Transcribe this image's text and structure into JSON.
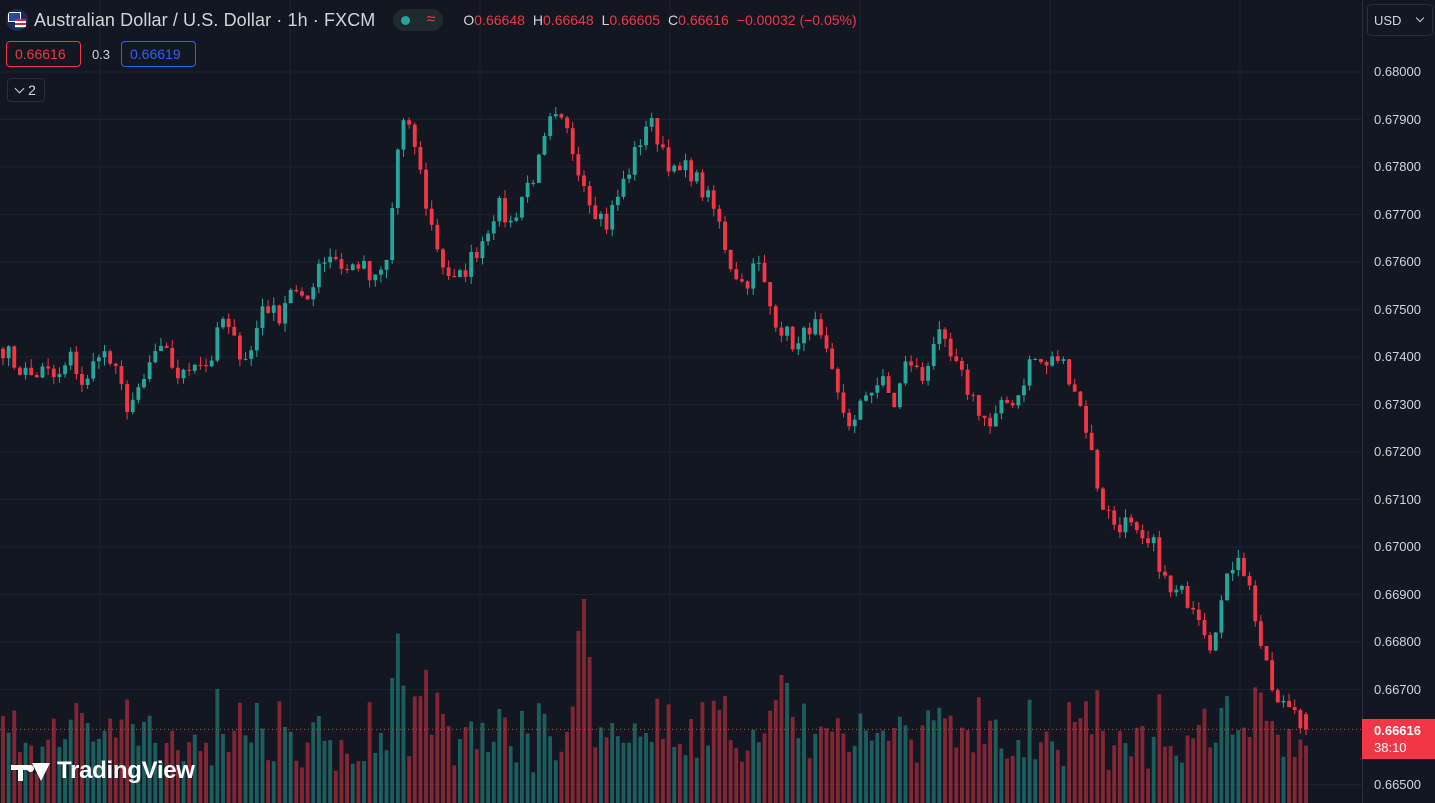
{
  "header": {
    "symbol_title": "Australian Dollar / U.S. Dollar · 1h · FXCM",
    "ohlc": {
      "open_label": "O",
      "open": "0.66648",
      "high_label": "H",
      "high": "0.66648",
      "low_label": "L",
      "low": "0.66605",
      "close_label": "C",
      "close": "0.66616",
      "change": "−0.00032 (−0.05%)"
    },
    "market_status_icon": "market-open-dot-icon",
    "wave_icon": "≈"
  },
  "quote": {
    "sell": "0.66616",
    "spread": "0.3",
    "buy": "0.66619"
  },
  "indicators_toggle": {
    "count": "2"
  },
  "currency": "USD",
  "last_price": {
    "price": "0.66616",
    "countdown": "38:10"
  },
  "watermark": "TradingView",
  "colors": {
    "background": "#131722",
    "up": "#26a69a",
    "down": "#f23645",
    "buy": "#2962ff",
    "grid": "#1e222d"
  },
  "chart_data": {
    "type": "candlestick",
    "timeframe": "1h",
    "y_axis": {
      "range": [
        0.6647,
        0.6802
      ],
      "ticks": [
        "0.68000",
        "0.67900",
        "0.67800",
        "0.67700",
        "0.67600",
        "0.67500",
        "0.67400",
        "0.67300",
        "0.67200",
        "0.67100",
        "0.67000",
        "0.66900",
        "0.66800",
        "0.66700",
        "0.66500"
      ]
    },
    "close_path": [
      0.6742,
      0.6738,
      0.6736,
      0.6737,
      0.6735,
      0.674,
      0.6733,
      0.6742,
      0.6738,
      0.673,
      0.6732,
      0.6741,
      0.674,
      0.6735,
      0.674,
      0.6738,
      0.6748,
      0.6742,
      0.674,
      0.6752,
      0.6748,
      0.6755,
      0.675,
      0.676,
      0.6762,
      0.6758,
      0.676,
      0.6755,
      0.676,
      0.679,
      0.6785,
      0.677,
      0.676,
      0.6755,
      0.676,
      0.6765,
      0.6772,
      0.6768,
      0.6775,
      0.678,
      0.679,
      0.6788,
      0.678,
      0.6772,
      0.6768,
      0.6775,
      0.6782,
      0.679,
      0.6785,
      0.6778,
      0.678,
      0.6775,
      0.677,
      0.676,
      0.6755,
      0.676,
      0.675,
      0.6745,
      0.6742,
      0.6748,
      0.674,
      0.673,
      0.6725,
      0.6733,
      0.6735,
      0.673,
      0.674,
      0.6735,
      0.6745,
      0.674,
      0.6735,
      0.673,
      0.6725,
      0.673,
      0.6732,
      0.674,
      0.6738,
      0.674,
      0.6735,
      0.6725,
      0.671,
      0.6705,
      0.6705,
      0.67,
      0.67,
      0.669,
      0.669,
      0.6688,
      0.668,
      0.669,
      0.67,
      0.669,
      0.6675,
      0.6666,
      0.6667,
      0.66616
    ],
    "candles_count": 232,
    "volume": {
      "axis_bottom_px_scaled": true,
      "last_bar": 0
    }
  }
}
